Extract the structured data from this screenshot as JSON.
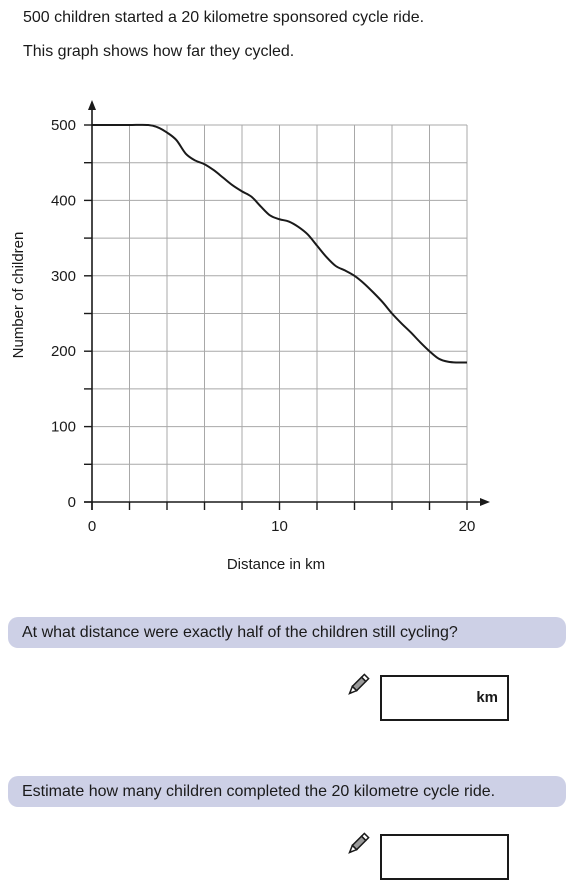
{
  "intro": {
    "line1": "500 children started a 20 kilometre sponsored cycle ride.",
    "line2": "This graph shows how far they cycled."
  },
  "chart_data": {
    "type": "line",
    "title": "",
    "xlabel": "Distance in km",
    "ylabel": "Number of children",
    "xlim": [
      0,
      20
    ],
    "ylim": [
      0,
      500
    ],
    "x_ticks": [
      0,
      10,
      20
    ],
    "y_ticks": [
      0,
      100,
      200,
      300,
      400,
      500
    ],
    "x_minor_step": 2,
    "y_minor_step": 50,
    "grid": true,
    "legend": "none",
    "line_color": "#1a1a1a",
    "grid_color": "#a8a8a8",
    "series": [
      {
        "x": [
          0,
          1,
          2,
          3,
          3.5,
          4,
          4.5,
          5,
          5.5,
          6,
          6.5,
          7,
          7.5,
          8,
          8.5,
          9,
          9.5,
          10,
          10.5,
          11,
          11.5,
          12,
          12.5,
          13,
          13.5,
          14,
          14.5,
          15,
          15.5,
          16,
          16.5,
          17,
          17.5,
          18,
          18.5,
          19,
          19.5,
          20
        ],
        "y": [
          500,
          500,
          500,
          500,
          497,
          490,
          480,
          462,
          453,
          448,
          440,
          430,
          420,
          412,
          405,
          392,
          380,
          375,
          372,
          365,
          355,
          340,
          325,
          313,
          307,
          300,
          290,
          278,
          265,
          250,
          237,
          225,
          212,
          200,
          190,
          186,
          185,
          185
        ]
      }
    ]
  },
  "question1": {
    "text": "At what distance were exactly half of the children still cycling?",
    "unit": "km"
  },
  "question2": {
    "text": "Estimate how many children completed the 20 kilometre cycle ride."
  },
  "icons": {
    "pencil": "pencil-icon"
  }
}
